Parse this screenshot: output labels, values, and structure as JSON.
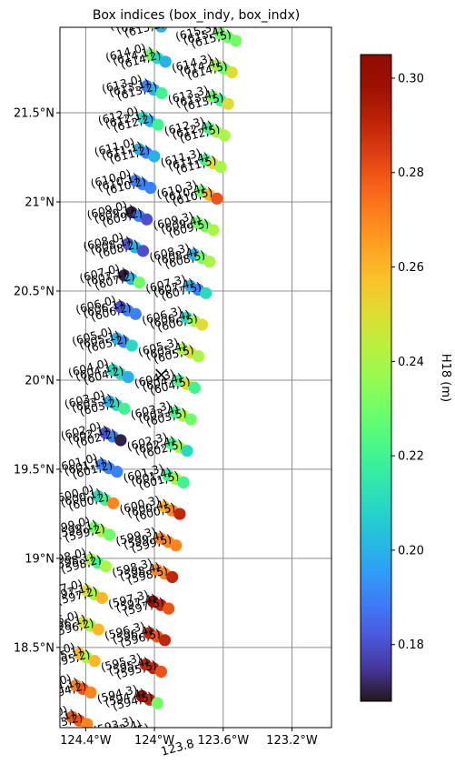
{
  "chart_data": {
    "type": "scatter",
    "title": "Box indices (box_indy, box_indx)",
    "xlim": [
      -124.55,
      -122.97
    ],
    "ylim": [
      18.05,
      21.98
    ],
    "x_ticks": [
      {
        "value": -124.4,
        "label": "124.4°W"
      },
      {
        "value": -124.0,
        "label": "124°W"
      },
      {
        "value": -123.6,
        "label": "123.6°W"
      },
      {
        "value": -123.2,
        "label": "123.2°W"
      }
    ],
    "y_ticks": [
      {
        "value": 18.5,
        "label": "18.5°N"
      },
      {
        "value": 19.0,
        "label": "19°N"
      },
      {
        "value": 19.5,
        "label": "19.5°N"
      },
      {
        "value": 20.0,
        "label": "20°N"
      },
      {
        "value": 20.5,
        "label": "20.5°N"
      },
      {
        "value": 21.0,
        "label": "21°N"
      },
      {
        "value": 21.5,
        "label": "21.5°N"
      }
    ],
    "extra_x_labels": [
      "124°W",
      "123.8"
    ],
    "grid": true,
    "colorbar": {
      "label": "H18 (m)",
      "colormap": "turbo",
      "range": [
        0.168,
        0.305
      ],
      "ticks": [
        0.18,
        0.2,
        0.22,
        0.24,
        0.26,
        0.28,
        0.3
      ],
      "tick_labels": [
        "0.18",
        "0.20",
        "0.22",
        "0.24",
        "0.26",
        "0.28",
        "0.30"
      ]
    },
    "marker": {
      "lon": -123.96,
      "lat": 20.03,
      "symbol": "x",
      "color": "#000000"
    },
    "geometry": {
      "rows": [
        593,
        594,
        595,
        596,
        597,
        598,
        599,
        600,
        601,
        602,
        603,
        604,
        605,
        606,
        607,
        608,
        609,
        610,
        611,
        612,
        613,
        614,
        615
      ],
      "columns": [
        0,
        1,
        2,
        3,
        4,
        5
      ],
      "row_lat_start": 18.11,
      "row_lat_step": 0.177,
      "row_lon_start": -124.48,
      "row_lon_step": 0.0217,
      "column_dlon": [
        0,
        0.042,
        0.088,
        0.385,
        0.43,
        0.475
      ],
      "column_dlat": [
        0,
        -0.02,
        -0.04,
        -0.06,
        -0.08,
        -0.1
      ]
    },
    "labels": {
      "show_columns": [
        0,
        1,
        2,
        3,
        4,
        5
      ],
      "rotation": -15
    },
    "values": {
      "593": [
        0.28,
        0.28,
        0.27,
        null,
        null,
        null
      ],
      "594": [
        0.27,
        0.28,
        0.27,
        0.3,
        0.29,
        0.23
      ],
      "595": [
        0.26,
        0.24,
        0.26,
        0.29,
        0.29,
        0.28
      ],
      "596": [
        0.25,
        0.24,
        0.26,
        0.29,
        0.28,
        0.29
      ],
      "597": [
        0.25,
        0.24,
        0.26,
        0.3,
        0.29,
        0.28
      ],
      "598": [
        0.24,
        0.22,
        0.24,
        0.27,
        0.27,
        0.29
      ],
      "599": [
        0.23,
        0.24,
        0.23,
        0.27,
        0.27,
        0.27
      ],
      "600": [
        0.21,
        0.22,
        0.27,
        0.26,
        0.27,
        0.29
      ],
      "601": [
        0.19,
        0.19,
        0.19,
        0.22,
        0.24,
        0.22
      ],
      "602": [
        0.18,
        0.19,
        0.17,
        0.22,
        0.24,
        0.21
      ],
      "603": [
        0.2,
        0.21,
        0.22,
        0.22,
        0.24,
        0.23
      ],
      "604": [
        0.21,
        0.21,
        0.2,
        0.22,
        0.25,
        0.22
      ],
      "605": [
        0.2,
        0.19,
        0.21,
        0.24,
        0.25,
        0.24
      ],
      "606": [
        0.18,
        0.19,
        0.19,
        0.21,
        0.24,
        0.25
      ],
      "607": [
        0.17,
        0.2,
        0.23,
        0.2,
        0.19,
        0.21
      ],
      "608": [
        0.18,
        0.2,
        0.18,
        0.2,
        0.23,
        0.24
      ],
      "609": [
        0.17,
        0.19,
        0.18,
        0.23,
        0.23,
        0.24
      ],
      "610": [
        0.19,
        0.19,
        0.19,
        0.23,
        0.26,
        0.28
      ],
      "611": [
        0.2,
        0.19,
        0.2,
        0.22,
        0.25,
        0.24
      ],
      "612": [
        0.21,
        0.2,
        0.22,
        0.22,
        0.24,
        0.24
      ],
      "613": [
        0.19,
        0.2,
        0.22,
        0.23,
        0.22,
        0.25
      ],
      "614": [
        0.23,
        0.21,
        0.2,
        0.24,
        0.23,
        0.25
      ],
      "615": [
        0.23,
        0.2,
        null,
        0.23,
        0.23,
        0.23
      ]
    }
  }
}
